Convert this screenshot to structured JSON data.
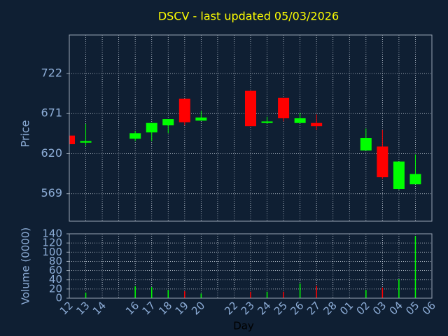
{
  "chart_data": {
    "type": "candlestick",
    "title": "DSCV - last updated 05/03/2026",
    "ylabel": "Price",
    "xlabel": "Day",
    "categories": [
      "12",
      "13",
      "14",
      null,
      "16",
      "17",
      "18",
      "19",
      "20",
      null,
      "22",
      "23",
      "24",
      "25",
      "26",
      "27",
      "28",
      "01",
      "02",
      "03",
      "04",
      "05",
      "06"
    ],
    "open": [
      643,
      634,
      null,
      null,
      639,
      647,
      656,
      690,
      662,
      null,
      null,
      700,
      659,
      691,
      659,
      659,
      null,
      null,
      624,
      629,
      575,
      581,
      null
    ],
    "high": [
      643,
      658,
      null,
      null,
      649,
      659,
      664,
      690,
      674,
      null,
      null,
      700,
      667,
      691,
      672,
      670,
      null,
      null,
      652,
      650,
      610,
      619,
      null
    ],
    "low": [
      632,
      630,
      null,
      null,
      636,
      636,
      646,
      656,
      662,
      null,
      null,
      655,
      658,
      661,
      659,
      650,
      null,
      null,
      624,
      588,
      574,
      581,
      null
    ],
    "close": [
      632,
      636,
      null,
      null,
      646,
      659,
      664,
      660,
      666,
      null,
      null,
      655,
      661,
      665,
      665,
      655,
      null,
      null,
      640,
      590,
      610,
      594,
      null
    ],
    "up_color": "#00ff00",
    "down_color": "#ff0000",
    "ylim": [
      534,
      771
    ],
    "yticks": [
      569,
      620,
      671,
      722
    ],
    "grid": true,
    "volume": {
      "ylabel": "Volume (0000)",
      "values": [
        null,
        12,
        null,
        null,
        26,
        24,
        18,
        15,
        10,
        null,
        null,
        14,
        14,
        14,
        32,
        27,
        null,
        null,
        18,
        23,
        41,
        135,
        null
      ],
      "ylim": [
        0,
        140
      ],
      "yticks": [
        0,
        20,
        40,
        60,
        80,
        100,
        120,
        140
      ]
    }
  }
}
